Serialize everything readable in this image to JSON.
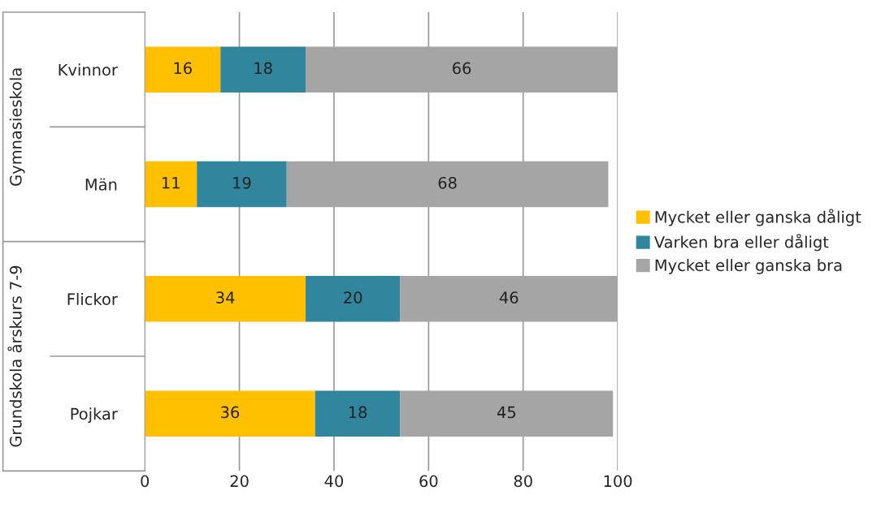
{
  "chart_data": {
    "type": "bar",
    "orientation": "horizontal",
    "stacked": true,
    "categories": [
      "Kvinnor",
      "Män",
      "Flickor",
      "Pojkar"
    ],
    "series": [
      {
        "name": "Mycket eller ganska dåligt",
        "color": "#ffc000",
        "values": [
          16,
          11,
          34,
          36
        ]
      },
      {
        "name": "Varken bra eller dåligt",
        "color": "#31859c",
        "values": [
          18,
          19,
          20,
          18
        ]
      },
      {
        "name": "Mycket eller ganska bra",
        "color": "#a5a5a5",
        "values": [
          66,
          68,
          46,
          45
        ]
      }
    ],
    "xlim": [
      0,
      100
    ],
    "xticks": [
      0,
      20,
      40,
      60,
      80,
      100
    ],
    "grid": "x",
    "legend": "right",
    "data_labels": true,
    "annotations": [
      "Gymnasieskola",
      "Grundskola årskurs 7-9"
    ]
  }
}
